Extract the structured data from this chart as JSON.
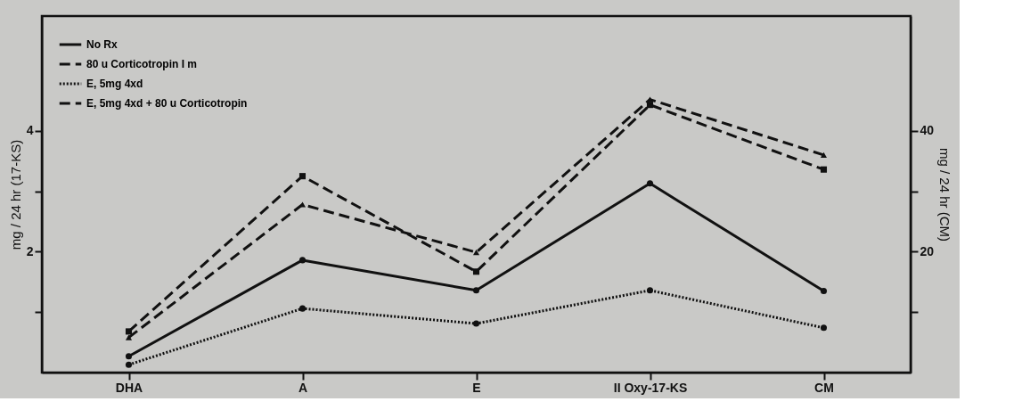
{
  "chart_data": {
    "type": "line",
    "categories": [
      "DHA",
      "A",
      "E",
      "II Oxy-17-KS",
      "CM"
    ],
    "ylabel": "mg / 24 hr (17-KS)",
    "y2label": "mg / 24 hr (CM)",
    "ylim": [
      0,
      5.9
    ],
    "yticks": [
      {
        "value": 1,
        "label": null
      },
      2,
      {
        "value": 3,
        "label": null
      },
      4
    ],
    "y2lim": [
      0,
      59
    ],
    "y2ticks": [
      {
        "value": 10,
        "label": null
      },
      20,
      {
        "value": 30,
        "label": null
      },
      40
    ],
    "legend": "top left",
    "grid": false,
    "series": [
      {
        "name": "No Rx",
        "color": "#111111",
        "line_style": "solid",
        "marker": "circle",
        "values": [
          0.27,
          1.86,
          1.36,
          3.13,
          1.35
        ]
      },
      {
        "name": "80 u Corticotropin I m",
        "color": "#111111",
        "line_style": "dashed",
        "marker": "triangle",
        "values": [
          0.58,
          2.78,
          1.99,
          4.52,
          3.6
        ]
      },
      {
        "name": "E, 5mg 4xd",
        "color": "#111111",
        "line_style": "dotted",
        "marker": "circle",
        "values": [
          0.13,
          1.06,
          0.81,
          1.36,
          0.74
        ]
      },
      {
        "name": "E, 5mg 4xd + 80 u Corticotropin",
        "color": "#111111",
        "line_style": "dashed",
        "marker": "square",
        "values": [
          0.68,
          3.25,
          1.67,
          4.43,
          3.36
        ]
      }
    ]
  }
}
